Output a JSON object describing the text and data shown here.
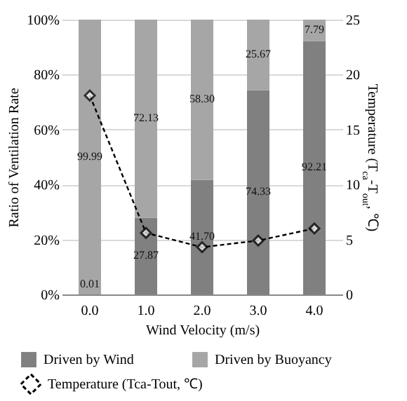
{
  "chart_data": {
    "type": "bar",
    "stacked": true,
    "categories": [
      "0.0",
      "1.0",
      "2.0",
      "3.0",
      "4.0"
    ],
    "xlabel": "Wind Velocity (m/s)",
    "ylabel": "Ratio of Ventilation Rate",
    "y2label": "Temperature (T$_{ca}$-T$_{out}$, ℃)",
    "ylim": [
      0,
      100
    ],
    "yticks": [
      {
        "value": 0,
        "label": "0%"
      },
      {
        "value": 20,
        "label": "20%"
      },
      {
        "value": 40,
        "label": "40%"
      },
      {
        "value": 60,
        "label": "60%"
      },
      {
        "value": 80,
        "label": "80%"
      },
      {
        "value": 100,
        "label": "100%"
      }
    ],
    "y2lim": [
      0,
      25
    ],
    "y2ticks": [
      0,
      5,
      10,
      15,
      20,
      25
    ],
    "grid": "y",
    "legend": "bottom",
    "series": [
      {
        "name": "Driven by Wind",
        "color": "#808080",
        "values": [
          0.01,
          27.87,
          41.7,
          74.33,
          92.21
        ],
        "value_labels": [
          "0.01",
          "27.87",
          "41.70",
          "74.33",
          "92.21"
        ]
      },
      {
        "name": "Driven by Buoyancy",
        "color": "#a6a6a6",
        "values": [
          99.99,
          72.13,
          58.3,
          25.67,
          7.79
        ],
        "value_labels": [
          "99.99",
          "72.13",
          "58.30",
          "25.67",
          "7.79"
        ]
      },
      {
        "name": "Temperature (Tca-Tout, ℃)",
        "type": "line",
        "axis": "y2",
        "color": "#000000",
        "marker": "diamond",
        "line_style": "dashed",
        "values": [
          18.1,
          5.6,
          4.3,
          4.9,
          6.0
        ]
      }
    ]
  }
}
